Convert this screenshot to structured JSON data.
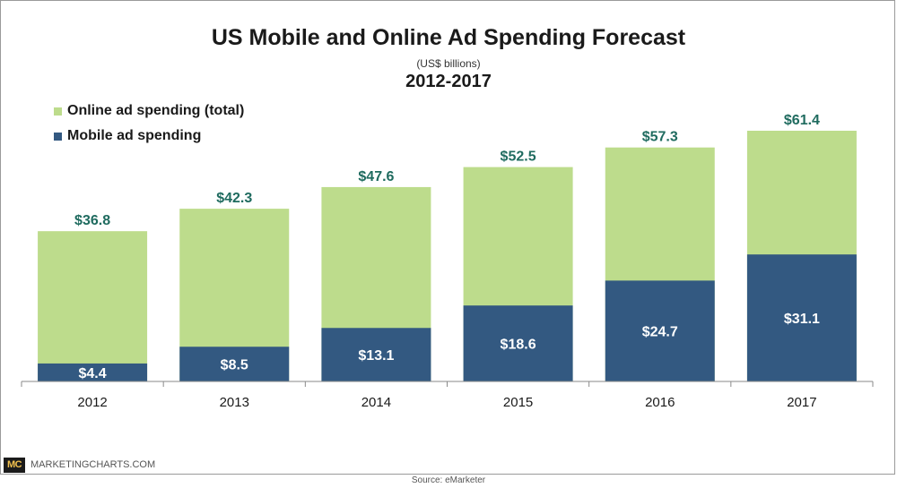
{
  "header": {
    "title": "US Mobile and Online Ad Spending Forecast",
    "subtitle": "(US$ billions)",
    "range": "2012-2017"
  },
  "colors": {
    "online": "#bddc8c",
    "mobile": "#335981",
    "online_label": "#1f6b5f",
    "mobile_label": "#ffffff"
  },
  "chart_data": {
    "type": "bar",
    "stacked": "overlay",
    "categories": [
      "2012",
      "2013",
      "2014",
      "2015",
      "2016",
      "2017"
    ],
    "series": [
      {
        "name": "Online ad spending (total)",
        "values": [
          36.8,
          42.3,
          47.6,
          52.5,
          57.3,
          61.4
        ],
        "labels": [
          "$36.8",
          "$42.3",
          "$47.6",
          "$52.5",
          "$57.3",
          "$61.4"
        ]
      },
      {
        "name": "Mobile ad spending",
        "values": [
          4.4,
          8.5,
          13.1,
          18.6,
          24.7,
          31.1
        ],
        "labels": [
          "$4.4",
          "$8.5",
          "$13.1",
          "$18.6",
          "$24.7",
          "$31.1"
        ]
      }
    ],
    "ylim": [
      0,
      62
    ],
    "grid": false,
    "legend": "top-left"
  },
  "footer": {
    "brand_badge": "MC",
    "brand_name": "MARKETINGCHARTS.COM",
    "source": "Source: eMarketer"
  }
}
